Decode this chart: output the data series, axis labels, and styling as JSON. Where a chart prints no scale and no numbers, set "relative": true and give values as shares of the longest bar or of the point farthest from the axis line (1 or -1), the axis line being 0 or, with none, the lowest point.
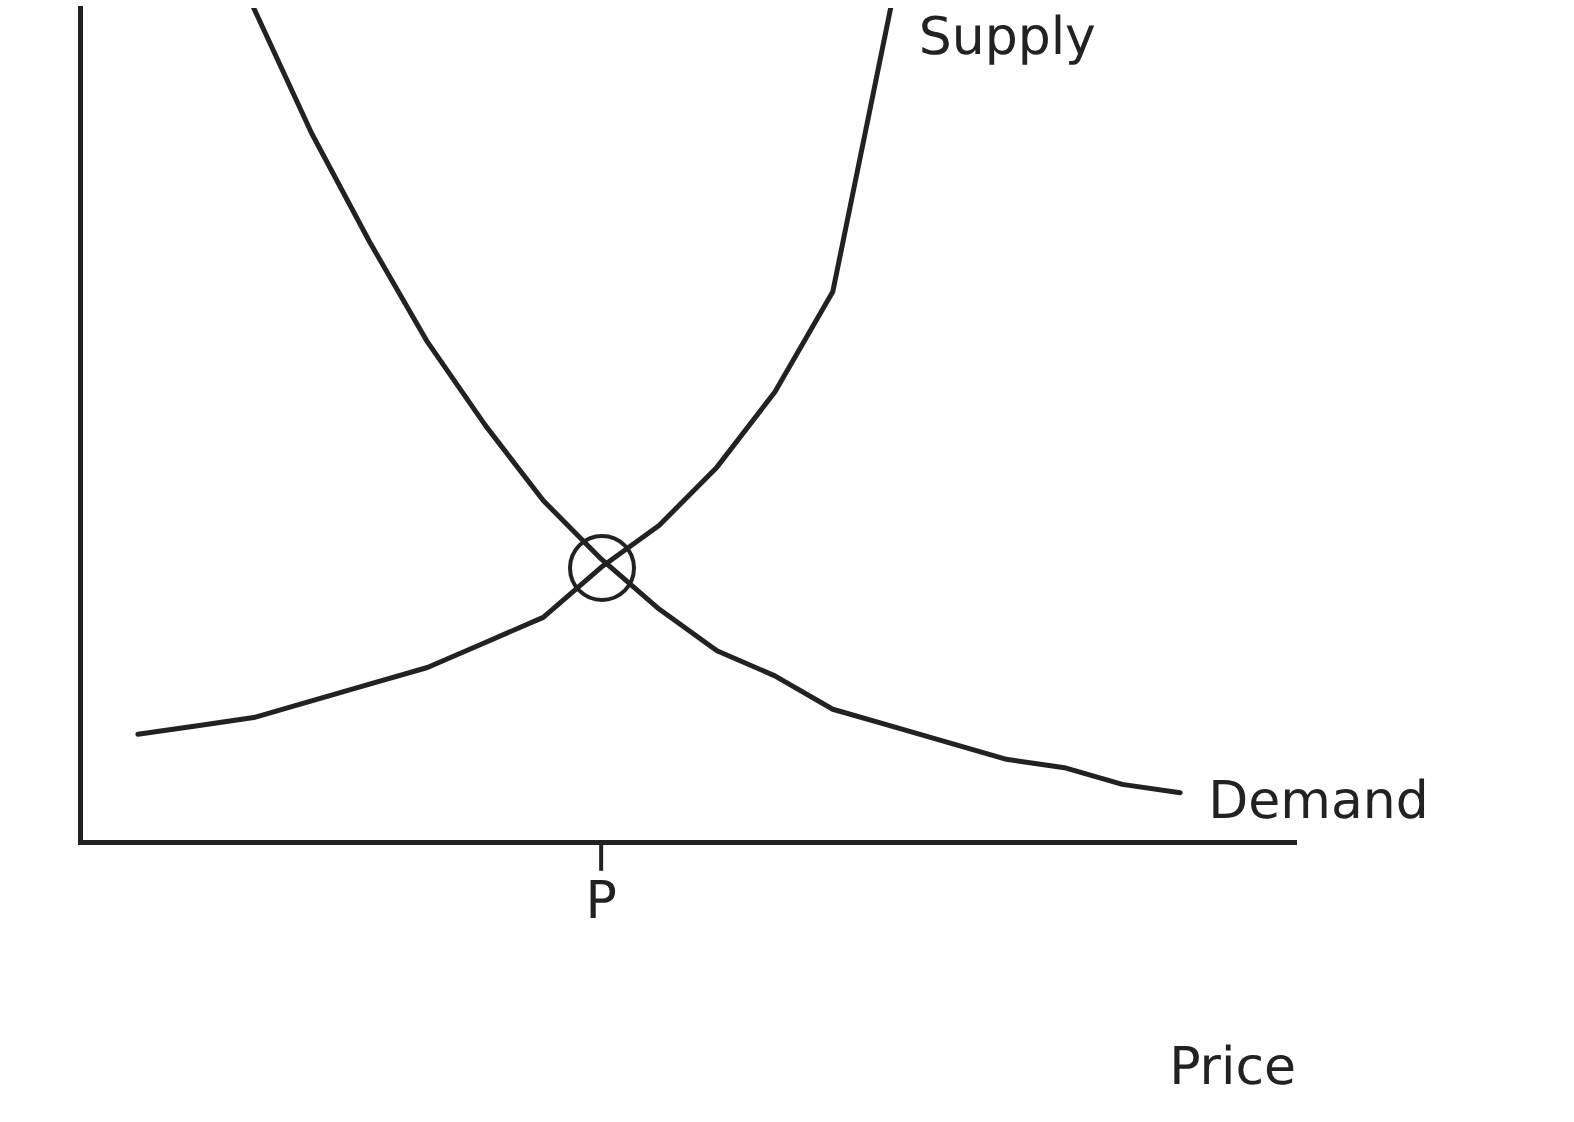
{
  "chart_data": {
    "type": "line",
    "relative": true,
    "xlabel": "Price",
    "legend": false,
    "grid": false,
    "marker": "none",
    "line_style": "solid",
    "annotations": [
      "P"
    ],
    "categories": [
      null,
      null,
      null,
      null,
      null,
      null,
      null,
      null,
      null,
      null,
      null,
      null,
      null,
      null,
      null,
      null,
      null,
      null,
      null,
      null,
      null,
      null
    ],
    "series": [
      {
        "name": "Supply",
        "color": "#222222",
        "values": [
          null,
          0.13,
          0.14,
          0.15,
          0.17,
          0.19,
          0.21,
          0.24,
          0.27,
          0.33,
          0.38,
          0.45,
          0.54,
          0.66,
          1.0,
          null,
          null,
          null,
          null,
          null,
          null,
          null
        ]
      },
      {
        "name": "Demand",
        "color": "#222222",
        "values": [
          null,
          null,
          null,
          1.0,
          0.85,
          0.72,
          0.6,
          0.5,
          0.41,
          0.34,
          0.28,
          0.23,
          0.2,
          0.16,
          0.14,
          0.12,
          0.1,
          0.09,
          0.07,
          0.06,
          null,
          null
        ]
      }
    ]
  }
}
